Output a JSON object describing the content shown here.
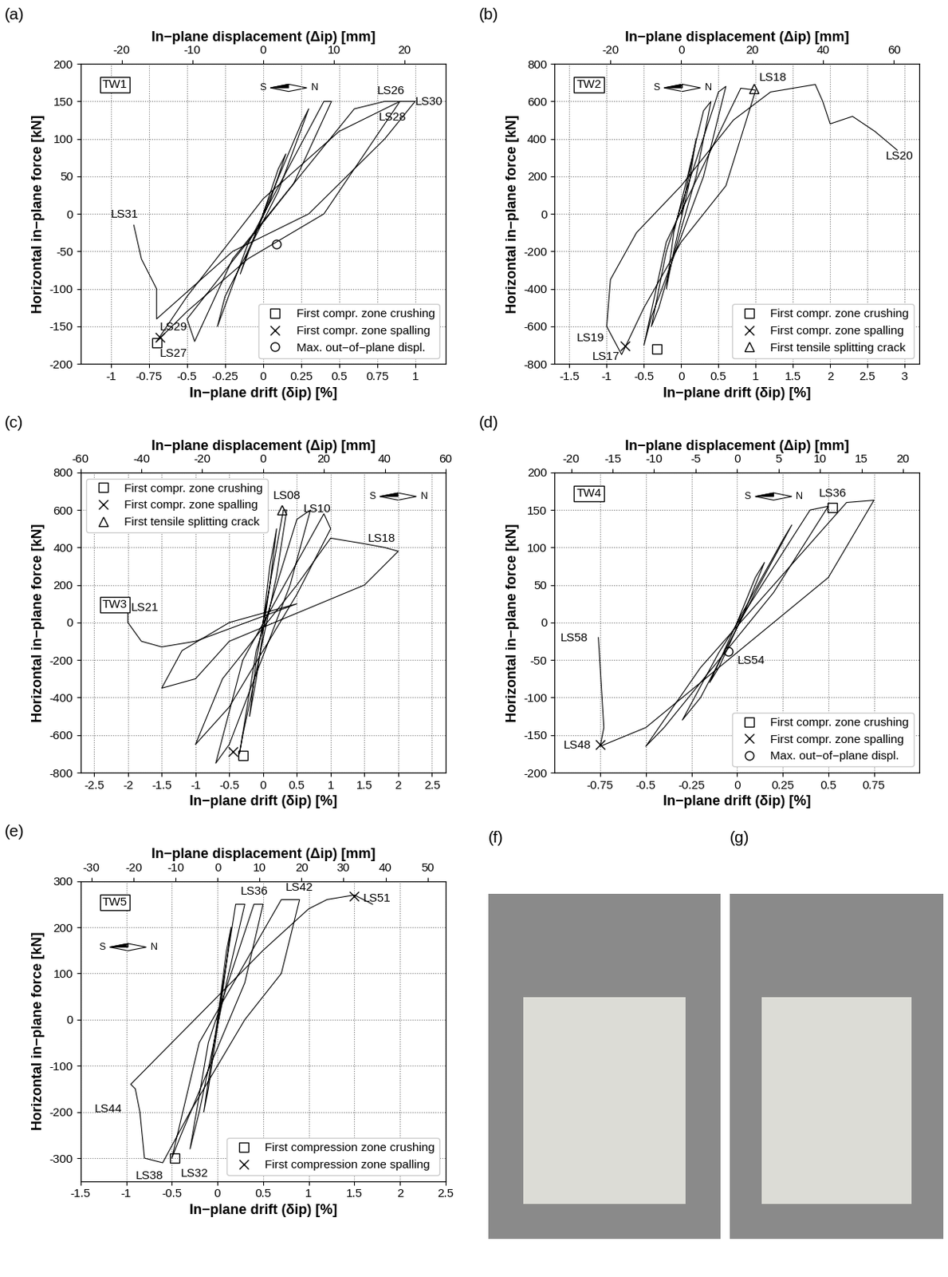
{
  "chart_data": [
    {
      "type": "line",
      "panel": "(a)",
      "specimen": "TW1",
      "compass": [
        "S",
        "N"
      ],
      "xlabel": "In−plane drift (δip) [%]",
      "x2label": "In−plane displacement (Δip) [mm]",
      "ylabel": "Horizontal in−plane force [kN]",
      "xlim": [
        -1.2,
        1.2
      ],
      "xticks": [
        -1,
        -0.75,
        -0.5,
        -0.25,
        0,
        0.25,
        0.5,
        0.75,
        1
      ],
      "x2lim": [
        -25.8,
        25.8
      ],
      "x2ticks": [
        -20,
        -10,
        0,
        10,
        20
      ],
      "ylim": [
        -200,
        200
      ],
      "yticks": [
        -200,
        -150,
        -100,
        -50,
        0,
        50,
        100,
        150,
        200
      ],
      "grid": true,
      "legend": "lower right",
      "color": "#000000",
      "x": [
        0,
        0.1,
        0.15,
        0.05,
        -0.1,
        -0.15,
        0,
        0.25,
        0.3,
        0.1,
        -0.25,
        -0.3,
        -0.1,
        0.4,
        0.45,
        0.2,
        -0.5,
        -0.45,
        -0.2,
        0.6,
        0.8,
        0.9,
        0.4,
        -0.1,
        -0.5,
        -0.7,
        -0.5,
        0,
        0.5,
        0.9,
        1.0,
        0.8,
        0.3,
        -0.2,
        -0.7,
        -0.7,
        -0.8,
        -0.85
      ],
      "y": [
        0,
        60,
        80,
        20,
        -50,
        -80,
        0,
        120,
        140,
        30,
        -110,
        -150,
        -40,
        150,
        150,
        40,
        -140,
        -170,
        -60,
        140,
        150,
        150,
        0,
        -60,
        -130,
        -170,
        -110,
        20,
        110,
        150,
        150,
        100,
        0,
        -50,
        -140,
        -100,
        -60,
        -15
      ],
      "markers": [
        {
          "label": "First compr. zone crushing",
          "marker": "square",
          "x": -0.7,
          "y": -172
        },
        {
          "label": "First compr. zone spalling",
          "marker": "x",
          "x": -0.68,
          "y": -165
        },
        {
          "label": "Max. out−of−plane displ.",
          "marker": "circle",
          "x": 0.09,
          "y": -40
        }
      ],
      "annotations": [
        {
          "text": "LS26",
          "x": 0.75,
          "y": 160
        },
        {
          "text": "LS30",
          "x": 1.0,
          "y": 145
        },
        {
          "text": "LS28",
          "x": 0.76,
          "y": 125
        },
        {
          "text": "LS31",
          "x": -1.0,
          "y": -5
        },
        {
          "text": "LS29",
          "x": -0.68,
          "y": -155
        },
        {
          "text": "LS27",
          "x": -0.68,
          "y": -190
        }
      ]
    },
    {
      "type": "line",
      "panel": "(b)",
      "specimen": "TW2",
      "compass": [
        "S",
        "N"
      ],
      "xlabel": "In−plane drift (δip) [%]",
      "x2label": "In−plane displacement (Δip) [mm]",
      "ylabel": "Horizontal in−plane force [kN]",
      "xlim": [
        -1.7,
        3.2
      ],
      "xticks": [
        -1.5,
        -1,
        -0.5,
        0,
        0.5,
        1,
        1.5,
        2,
        2.5,
        3
      ],
      "x2lim": [
        -35.7,
        67.2
      ],
      "x2ticks": [
        -20,
        0,
        20,
        40,
        60
      ],
      "ylim": [
        -800,
        800
      ],
      "yticks": [
        -800,
        -600,
        -400,
        -200,
        0,
        200,
        400,
        600,
        800
      ],
      "grid": true,
      "legend": "lower right",
      "color": "#000000",
      "x": [
        0,
        0.1,
        0.2,
        0.1,
        -0.1,
        -0.2,
        -0.1,
        0.3,
        0.4,
        0.2,
        -0.3,
        -0.4,
        -0.2,
        0.5,
        0.6,
        0.3,
        -0.4,
        -0.5,
        -0.2,
        0.8,
        1.0,
        0.6,
        0,
        -0.5,
        -0.8,
        -1.0,
        -0.95,
        -0.6,
        0,
        0.7,
        1.2,
        1.8,
        1.9,
        2.0,
        2.3,
        2.6,
        2.9
      ],
      "y": [
        0,
        200,
        400,
        150,
        -200,
        -400,
        -100,
        550,
        600,
        200,
        -500,
        -600,
        -200,
        650,
        680,
        200,
        -550,
        -700,
        -150,
        670,
        660,
        150,
        -150,
        -500,
        -750,
        -600,
        -350,
        -100,
        150,
        500,
        650,
        690,
        600,
        480,
        520,
        440,
        340
      ],
      "markers": [
        {
          "label": "First compr. zone crushing",
          "marker": "square",
          "x": -0.33,
          "y": -720
        },
        {
          "label": "First compr. zone spalling",
          "marker": "x",
          "x": -0.75,
          "y": -705
        },
        {
          "label": "First tensile splitting crack",
          "marker": "triangle",
          "x": 0.98,
          "y": 670
        }
      ],
      "annotations": [
        {
          "text": "LS18",
          "x": 1.05,
          "y": 710
        },
        {
          "text": "LS19",
          "x": -1.4,
          "y": -680
        },
        {
          "text": "LS17",
          "x": -1.2,
          "y": -780
        },
        {
          "text": "LS20",
          "x": 2.75,
          "y": 290
        }
      ]
    },
    {
      "type": "line",
      "panel": "(c)",
      "specimen": "TW3",
      "compass": [
        "S",
        "N"
      ],
      "xlabel": "In−plane drift (δip) [%]",
      "x2label": "In−plane displacement (Δip) [mm]",
      "ylabel": "Horizontal in−plane force [kN]",
      "xlim": [
        -2.7,
        2.7
      ],
      "xticks": [
        -2.5,
        -2,
        -1.5,
        -1,
        -0.5,
        0,
        0.5,
        1,
        1.5,
        2,
        2.5
      ],
      "x2lim": [
        -60,
        60
      ],
      "x2ticks": [
        -60,
        -40,
        -20,
        0,
        20,
        40,
        60
      ],
      "ylim": [
        -800,
        800
      ],
      "yticks": [
        -800,
        -600,
        -400,
        -200,
        0,
        200,
        400,
        600,
        800
      ],
      "grid": true,
      "legend": "upper left",
      "color": "#000000",
      "x": [
        0,
        0.1,
        0.2,
        0.1,
        -0.1,
        -0.2,
        -0.1,
        0.3,
        0.35,
        0.2,
        -0.3,
        -0.35,
        -0.1,
        0.5,
        0.7,
        0.4,
        -0.5,
        -0.7,
        -0.3,
        0.9,
        1.0,
        0.5,
        -0.5,
        -1.0,
        -0.6,
        0.5,
        1.0,
        1.5,
        1.8,
        2.0,
        1.5,
        0.5,
        -0.5,
        -1.0,
        -1.5,
        -1.2,
        -0.5,
        0.5,
        -1.0,
        -1.5,
        -1.8,
        -2.0,
        -2.0
      ],
      "y": [
        0,
        300,
        500,
        200,
        -300,
        -500,
        -200,
        600,
        600,
        250,
        -600,
        -700,
        -150,
        550,
        600,
        200,
        -650,
        -750,
        -200,
        580,
        500,
        150,
        -450,
        -650,
        -300,
        200,
        450,
        420,
        400,
        380,
        200,
        50,
        -100,
        -300,
        -350,
        -150,
        0,
        100,
        -100,
        -130,
        -100,
        0,
        50
      ],
      "markers": [
        {
          "label": "First compr. zone crushing",
          "marker": "square",
          "x": -0.3,
          "y": -710
        },
        {
          "label": "First compr. zone spalling",
          "marker": "x",
          "x": -0.45,
          "y": -690
        },
        {
          "label": "First tensile splitting crack",
          "marker": "triangle",
          "x": 0.28,
          "y": 600
        }
      ],
      "annotations": [
        {
          "text": "LS08",
          "x": 0.15,
          "y": 660
        },
        {
          "text": "LS10",
          "x": 0.6,
          "y": 590
        },
        {
          "text": "LS18",
          "x": 1.55,
          "y": 430
        },
        {
          "text": "LS21",
          "x": -1.95,
          "y": 60
        }
      ]
    },
    {
      "type": "line",
      "panel": "(d)",
      "specimen": "TW4",
      "compass": [
        "S",
        "N"
      ],
      "xlabel": "In−plane drift (δip) [%]",
      "x2label": "In−plane displacement (Δip) [mm]",
      "ylabel": "Horizontal in−plane force [kN]",
      "xlim": [
        -1.0,
        1.0
      ],
      "xticks": [
        -0.75,
        -0.5,
        -0.25,
        0,
        0.25,
        0.5,
        0.75
      ],
      "x2lim": [
        -22,
        22
      ],
      "x2ticks": [
        -20,
        -15,
        -10,
        -5,
        0,
        5,
        10,
        15,
        20
      ],
      "ylim": [
        -200,
        200
      ],
      "yticks": [
        -200,
        -150,
        -100,
        -50,
        0,
        50,
        100,
        150,
        200
      ],
      "grid": true,
      "legend": "lower right",
      "color": "#000000",
      "x": [
        0,
        0.1,
        0.15,
        0.05,
        -0.1,
        -0.15,
        0,
        0.25,
        0.3,
        0.1,
        -0.2,
        -0.3,
        -0.1,
        0.4,
        0.5,
        0.2,
        -0.4,
        -0.5,
        -0.2,
        0.6,
        0.75,
        0.5,
        0.0,
        -0.5,
        -0.75,
        -0.73,
        -0.76
      ],
      "y": [
        0,
        60,
        80,
        20,
        -60,
        -80,
        0,
        110,
        130,
        40,
        -100,
        -130,
        -40,
        150,
        155,
        40,
        -140,
        -165,
        -60,
        160,
        163,
        60,
        -40,
        -140,
        -165,
        -140,
        -20
      ],
      "markers": [
        {
          "label": "First compr. zone crushing",
          "marker": "square",
          "x": 0.52,
          "y": 153
        },
        {
          "label": "First compr. zone spalling",
          "marker": "x",
          "x": -0.75,
          "y": -163
        },
        {
          "label": "Max. out−of−plane displ.",
          "marker": "circle",
          "x": -0.05,
          "y": -38
        }
      ],
      "annotations": [
        {
          "text": "LS36",
          "x": 0.45,
          "y": 168
        },
        {
          "text": "LS48",
          "x": -0.95,
          "y": -168
        },
        {
          "text": "LS58",
          "x": -0.97,
          "y": -25
        },
        {
          "text": "LS54",
          "x": 0.0,
          "y": -55
        }
      ]
    },
    {
      "type": "line",
      "panel": "(e)",
      "specimen": "TW5",
      "compass": [
        "S",
        "N"
      ],
      "xlabel": "In−plane drift (δip) [%]",
      "x2label": "In−plane displacement (Δip) [mm]",
      "ylabel": "Horizontal in−plane force [kN]",
      "xlim": [
        -1.5,
        2.5
      ],
      "xticks": [
        -1.5,
        -1,
        -0.5,
        0,
        0.5,
        1,
        1.5,
        2,
        2.5
      ],
      "x2lim": [
        -32.6,
        54.3
      ],
      "x2ticks": [
        -30,
        -20,
        -10,
        0,
        10,
        20,
        30,
        40,
        50
      ],
      "ylim": [
        -350,
        300
      ],
      "yticks": [
        -300,
        -200,
        -100,
        0,
        100,
        200,
        300
      ],
      "grid": true,
      "legend": "lower right",
      "color": "#000000",
      "x": [
        0,
        0.1,
        0.15,
        0.05,
        -0.1,
        -0.15,
        0,
        0.2,
        0.3,
        0.1,
        -0.2,
        -0.3,
        -0.1,
        0.4,
        0.5,
        0.3,
        -0.4,
        -0.5,
        -0.2,
        0.7,
        0.9,
        0.7,
        0.3,
        -0.3,
        -0.6,
        -0.8,
        -0.85,
        -0.9,
        -0.95,
        -0.5,
        0.5,
        1.0,
        1.2,
        1.5,
        1.7
      ],
      "y": [
        0,
        150,
        200,
        50,
        -150,
        -200,
        0,
        250,
        250,
        80,
        -200,
        -280,
        -50,
        250,
        250,
        80,
        -250,
        -300,
        -50,
        260,
        260,
        100,
        0,
        -200,
        -310,
        -300,
        -200,
        -150,
        -140,
        -50,
        150,
        240,
        260,
        270,
        250
      ],
      "markers": [
        {
          "label": "First compression zone crushing",
          "marker": "square",
          "x": -0.47,
          "y": -300
        },
        {
          "label": "First compression zone spalling",
          "marker": "x",
          "x": 1.5,
          "y": 268
        }
      ],
      "annotations": [
        {
          "text": "LS36",
          "x": 0.25,
          "y": 270
        },
        {
          "text": "LS42",
          "x": 0.75,
          "y": 280
        },
        {
          "text": "LS51",
          "x": 1.6,
          "y": 255
        },
        {
          "text": "LS44",
          "x": -1.35,
          "y": -200
        },
        {
          "text": "LS38",
          "x": -0.9,
          "y": -345
        },
        {
          "text": "LS32",
          "x": -0.4,
          "y": -340
        }
      ]
    }
  ],
  "photos": [
    {
      "label": "(f)"
    },
    {
      "label": "(g)"
    }
  ]
}
